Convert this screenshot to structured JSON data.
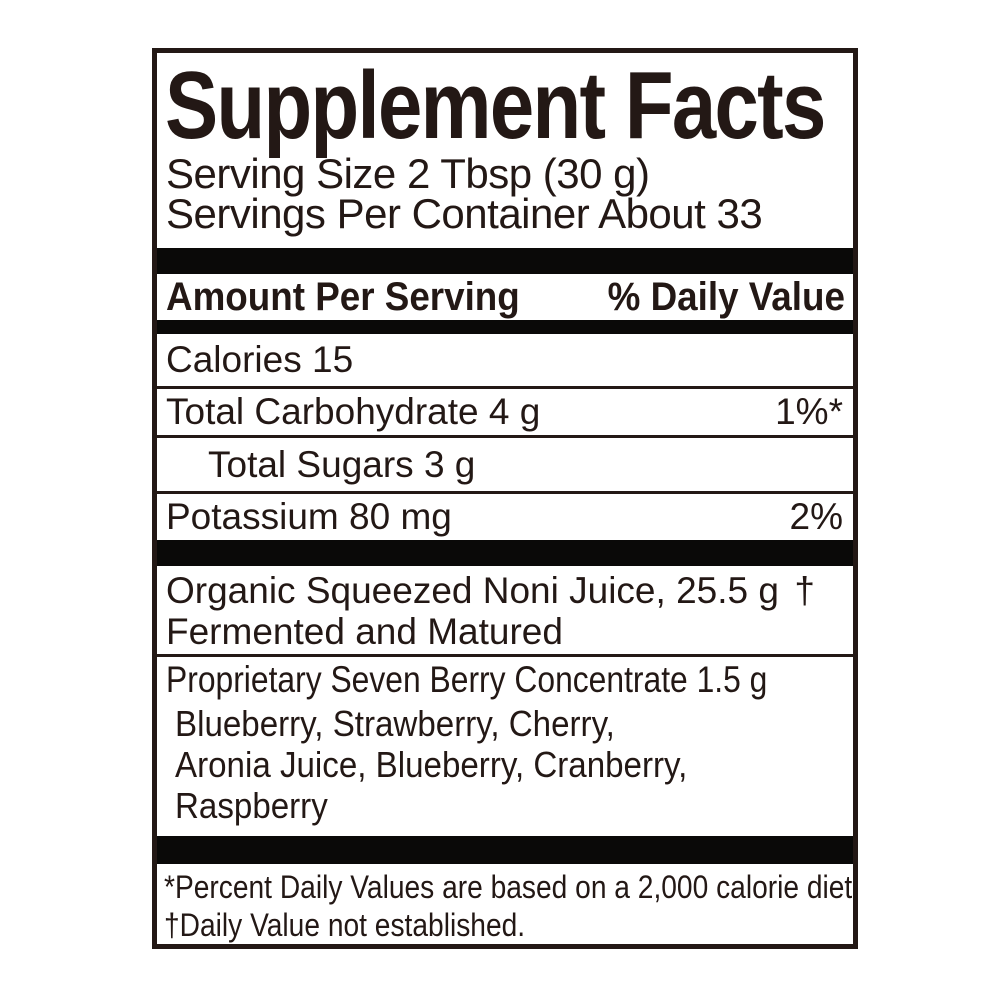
{
  "panel": {
    "title": "Supplement Facts",
    "serving_size": "Serving Size 2 Tbsp (30 g)",
    "servings_per_container": "Servings Per Container About 33",
    "header": {
      "left": "Amount Per Serving",
      "right": "% Daily Value"
    },
    "rows": [
      {
        "name": "Calories 15",
        "value": ""
      },
      {
        "name": "Total Carbohydrate 4 g",
        "value": "1%*"
      },
      {
        "name": "Total Sugars 3 g",
        "value": "",
        "indented": true
      },
      {
        "name": "Potassium 80 mg",
        "value": "2%"
      }
    ],
    "ingredients": [
      {
        "name_line1": "Organic Squeezed Noni Juice, 25.5 g",
        "name_line2": "Fermented and Matured",
        "daily_value": "†"
      },
      {
        "name": "Proprietary Seven Berry Concentrate 1.5 g",
        "daily_value": "†",
        "components": [
          "Blueberry, Strawberry, Cherry,",
          "Aronia Juice, Blueberry, Cranberry,",
          "Raspberry"
        ]
      }
    ],
    "footnotes": [
      "*Percent Daily Values are based on a 2,000 calorie diet.",
      "†Daily Value not established."
    ],
    "colors": {
      "ink": "#231815",
      "bar": "#0a0908",
      "background": "#ffffff"
    }
  }
}
